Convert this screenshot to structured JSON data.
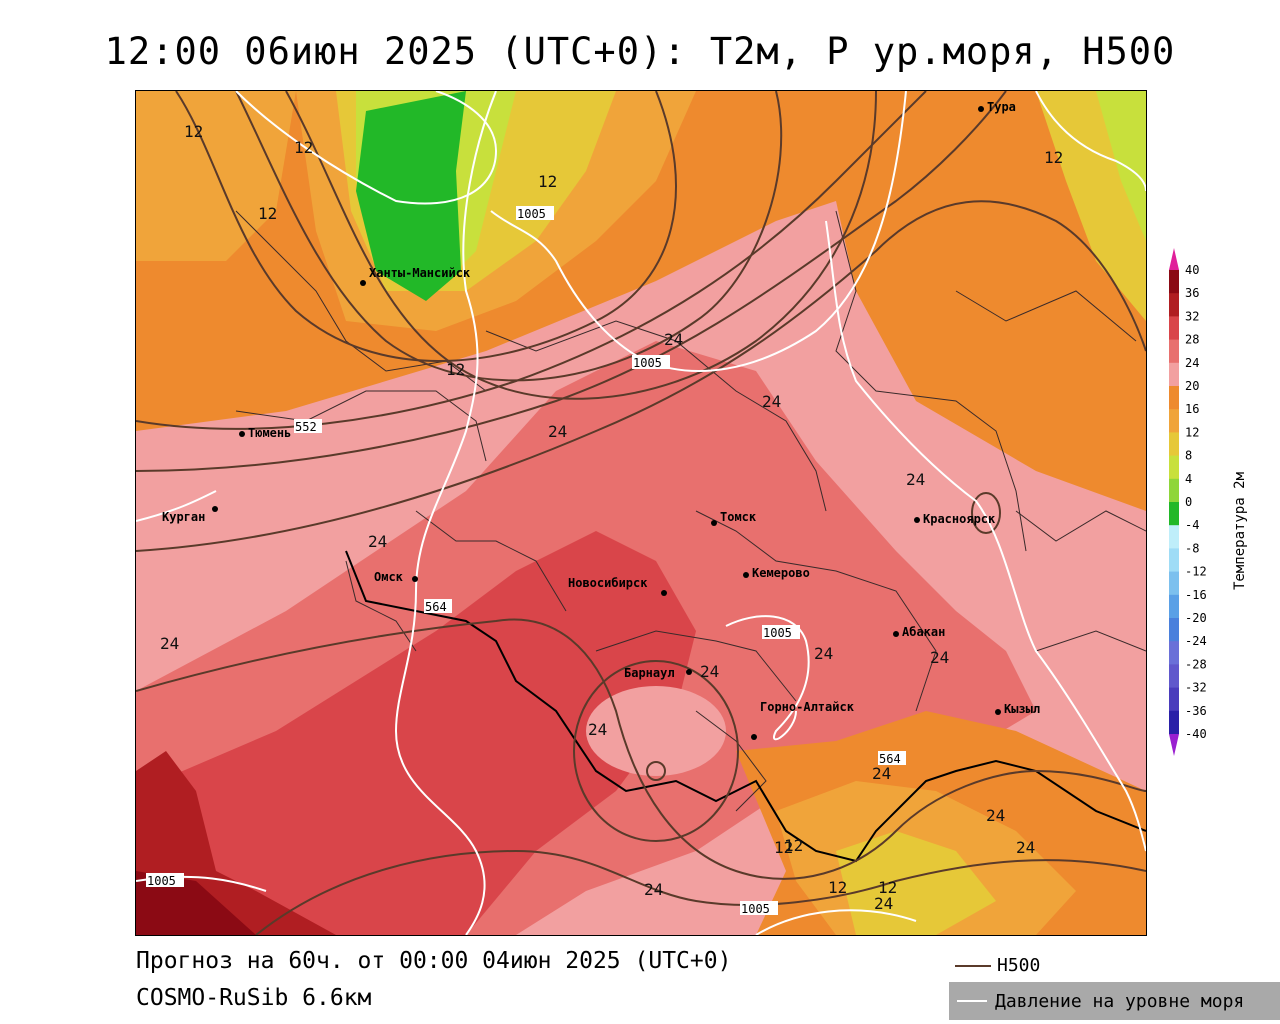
{
  "title": "12:00 06июн 2025 (UTC+0): T2м, P ур.моря, H500",
  "footer": {
    "forecast_line": "Прогноз на 60ч. от 00:00 04июн 2025 (UTC+0)",
    "model_line": "COSMO-RuSib 6.6км"
  },
  "legend": {
    "h500_label": "H500",
    "h500_color": "#5a3a2a",
    "pressure_label": "Давление на уровне моря",
    "pressure_color": "#ffffff"
  },
  "colorbar": {
    "title": "Температура 2м",
    "ticks": [
      "40",
      "36",
      "32",
      "28",
      "24",
      "20",
      "16",
      "12",
      "8",
      "4",
      "0",
      "-4",
      "-8",
      "-12",
      "-16",
      "-20",
      "-24",
      "-28",
      "-32",
      "-36",
      "-40"
    ],
    "colors": [
      "#8b0a14",
      "#b01e22",
      "#d9454a",
      "#e8706e",
      "#f2a0a0",
      "#ee8a2e",
      "#f0a43a",
      "#e6c838",
      "#c8e03c",
      "#8fd63a",
      "#22b828",
      "#bfeefa",
      "#9fdcf6",
      "#7cc0ee",
      "#5aa0e6",
      "#4a80dc",
      "#6a70d8",
      "#6058cc",
      "#4a3cbc",
      "#2a20a8"
    ]
  },
  "cities": [
    {
      "name": "Тура"
    },
    {
      "name": "Ханты-Мансийск"
    },
    {
      "name": "Тюмень"
    },
    {
      "name": "Курган"
    },
    {
      "name": "Омск"
    },
    {
      "name": "Томск"
    },
    {
      "name": "Красноярск"
    },
    {
      "name": "Новосибирск"
    },
    {
      "name": "Кемерово"
    },
    {
      "name": "Абакан"
    },
    {
      "name": "Барнаул"
    },
    {
      "name": "Горно-Алтайск"
    },
    {
      "name": "Кызыл"
    }
  ],
  "isobar_labels": [
    "1005",
    "1005",
    "1005",
    "1005",
    "1005"
  ],
  "h500_labels": [
    "552",
    "564",
    "564"
  ],
  "temperature_labels": [
    "12",
    "12",
    "12",
    "12",
    "12",
    "12",
    "12",
    "24",
    "24",
    "24",
    "24",
    "24",
    "24",
    "24",
    "24",
    "24",
    "24",
    "24",
    "24",
    "24",
    "24",
    "12",
    "12",
    "12",
    "24"
  ]
}
